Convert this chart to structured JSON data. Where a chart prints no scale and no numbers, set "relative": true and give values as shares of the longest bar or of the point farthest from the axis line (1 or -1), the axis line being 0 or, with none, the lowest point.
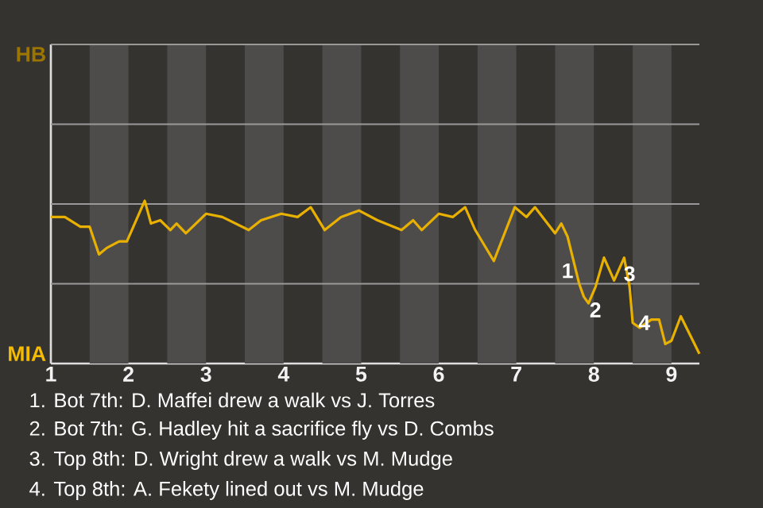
{
  "chart_data": {
    "type": "line",
    "relative": true,
    "x": [
      1.0,
      1.18,
      1.38,
      1.5,
      1.62,
      1.72,
      1.88,
      1.98,
      2.21,
      2.29,
      2.41,
      2.54,
      2.62,
      2.74,
      3.0,
      3.21,
      3.55,
      3.71,
      3.97,
      4.18,
      4.35,
      4.53,
      4.74,
      4.97,
      5.21,
      5.52,
      5.67,
      5.78,
      6.0,
      6.18,
      6.34,
      6.47,
      6.71,
      6.98,
      7.13,
      7.24,
      7.5,
      7.58,
      7.66,
      7.81,
      7.87,
      7.93,
      8.02,
      8.13,
      8.26,
      8.39,
      8.46,
      8.5,
      8.59,
      8.74,
      8.84,
      8.92,
      9.0,
      9.12,
      9.36
    ],
    "series": [
      {
        "color": "#e8b000",
        "values": [
          0.9,
          0.9,
          0.84,
          0.84,
          0.67,
          0.71,
          0.75,
          0.75,
          1,
          0.86,
          0.88,
          0.82,
          0.86,
          0.8,
          0.92,
          0.9,
          0.82,
          0.88,
          0.92,
          0.9,
          0.96,
          0.82,
          0.9,
          0.94,
          0.88,
          0.82,
          0.88,
          0.82,
          0.92,
          0.9,
          0.96,
          0.82,
          0.63,
          0.96,
          0.9,
          0.96,
          0.8,
          0.86,
          0.78,
          0.49,
          0.41,
          0.37,
          0.47,
          0.65,
          0.51,
          0.65,
          0.47,
          0.25,
          0.22,
          0.27,
          0.27,
          0.12,
          0.14,
          0.29,
          0.06
        ]
      }
    ],
    "xlim": [
      1,
      9.36
    ],
    "xticks": [
      1,
      2,
      3,
      4,
      5,
      6,
      7,
      8,
      9
    ],
    "ref_lines": [
      {
        "axis": "y",
        "value": 0.49,
        "color": "#999999"
      },
      {
        "axis": "y",
        "value": 0.98,
        "color": "#999999"
      },
      {
        "axis": "y",
        "value": 1.47,
        "color": "#999999"
      },
      {
        "axis": "y",
        "value": 1.96,
        "color": "#999999"
      }
    ],
    "bands": [
      {
        "axis": "x",
        "from": 1.5,
        "to": 2,
        "color": "#4d4c4a"
      },
      {
        "axis": "x",
        "from": 2.5,
        "to": 3,
        "color": "#4d4c4a"
      },
      {
        "axis": "x",
        "from": 3.5,
        "to": 4,
        "color": "#4d4c4a"
      },
      {
        "axis": "x",
        "from": 4.5,
        "to": 5,
        "color": "#4d4c4a"
      },
      {
        "axis": "x",
        "from": 5.5,
        "to": 6,
        "color": "#4d4c4a"
      },
      {
        "axis": "x",
        "from": 6.5,
        "to": 7,
        "color": "#4d4c4a"
      },
      {
        "axis": "x",
        "from": 7.5,
        "to": 8,
        "color": "#4d4c4a"
      },
      {
        "axis": "x",
        "from": 8.5,
        "to": 9,
        "color": "#4d4c4a"
      }
    ],
    "annotations": [
      "HB",
      "MIA",
      {
        "text": "1",
        "x": 7.81,
        "y": 0.49
      },
      {
        "text": "2",
        "x": 7.87,
        "y": 0.41
      },
      {
        "text": "3",
        "x": 8.46,
        "y": 0.47
      },
      {
        "text": "4",
        "x": 8.5,
        "y": 0.25
      },
      "1. Bot 7th: D. Maffei drew a walk vs J. Torres",
      "2. Bot 7th: G. Hadley hit a sacrifice fly vs D. Combs",
      "3. Top 8th: D. Wright drew a walk vs M. Mudge",
      "4. Top 8th: A. Fekety lined out vs M. Mudge"
    ]
  }
}
